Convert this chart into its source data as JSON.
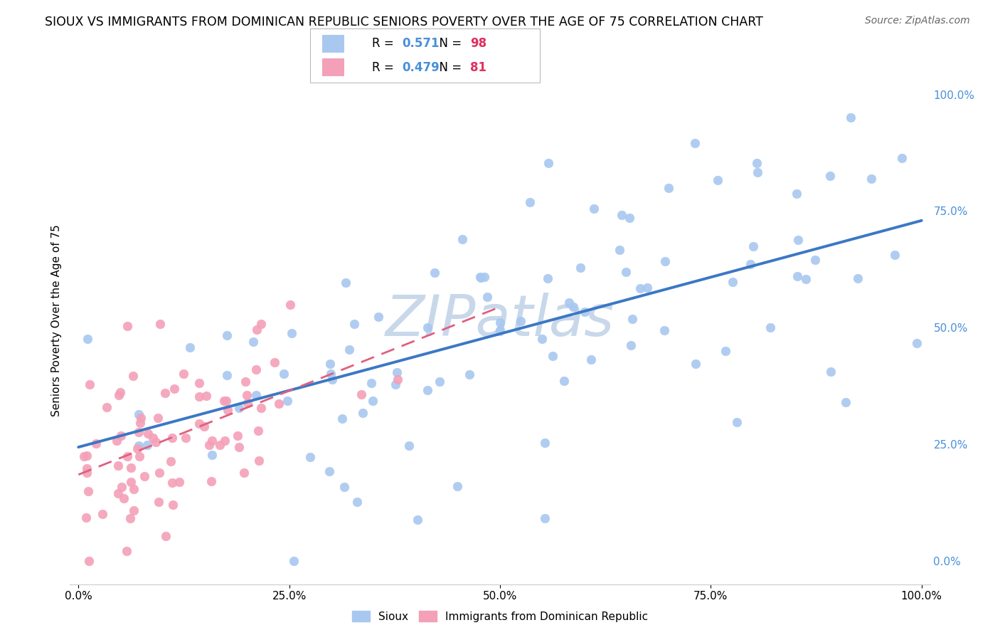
{
  "title": "SIOUX VS IMMIGRANTS FROM DOMINICAN REPUBLIC SENIORS POVERTY OVER THE AGE OF 75 CORRELATION CHART",
  "source": "Source: ZipAtlas.com",
  "ylabel": "Seniors Poverty Over the Age of 75",
  "sioux_R": 0.571,
  "sioux_N": 98,
  "dominican_R": 0.479,
  "dominican_N": 81,
  "sioux_color": "#a8c8f0",
  "dominican_color": "#f4a0b8",
  "sioux_line_color": "#3b78c4",
  "dominican_line_color": "#e06080",
  "watermark": "ZIPatlas",
  "watermark_color": "#c8d8ea",
  "title_fontsize": 12.5,
  "source_fontsize": 10,
  "axis_label_fontsize": 11,
  "tick_fontsize": 11,
  "legend_fontsize": 12,
  "background_color": "#ffffff",
  "grid_color": "#d8d8d8",
  "right_tick_color": "#4a90d9",
  "N_color": "#e03060",
  "R_color": "#4a90d9",
  "sioux_seed": 42,
  "dominican_seed": 7
}
